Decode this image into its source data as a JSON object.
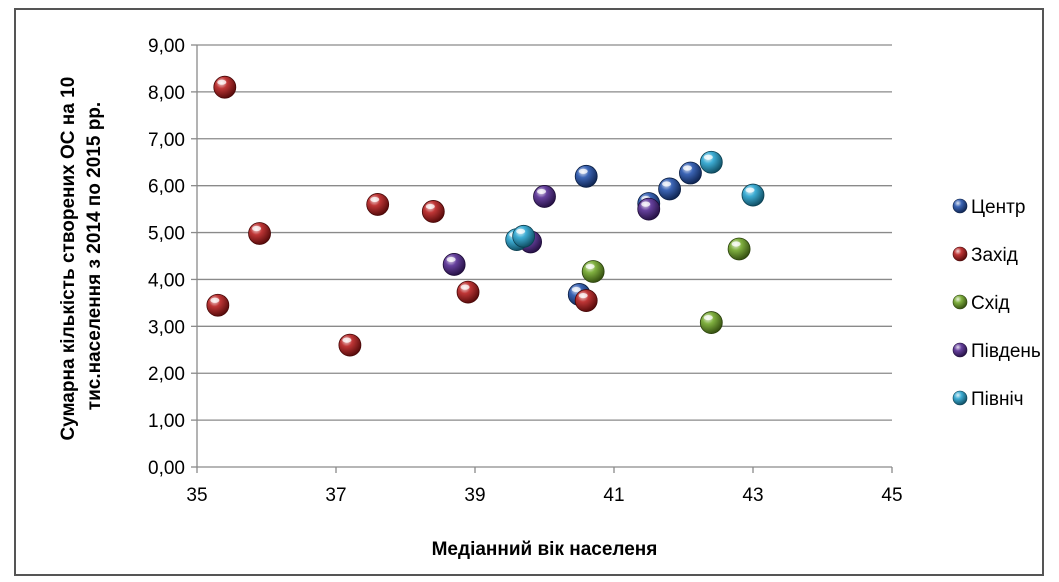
{
  "chart_data": {
    "type": "scatter",
    "title": "",
    "xlabel": "Медіанний вік населеня",
    "ylabel_lines": [
      "Сумарна кількість створених ОС на 10",
      "тис.населення з 2014 по 2015 рр."
    ],
    "xlim": [
      35,
      45
    ],
    "ylim": [
      0,
      9
    ],
    "x_ticks": [
      "35",
      "37",
      "39",
      "41",
      "43",
      "45"
    ],
    "y_ticks": [
      "0,00",
      "1,00",
      "2,00",
      "3,00",
      "4,00",
      "5,00",
      "6,00",
      "7,00",
      "8,00",
      "9,00"
    ],
    "grid": "horizontal",
    "legend_position": "right",
    "series": [
      {
        "name": "Центр",
        "color": "#1a4aa8",
        "points": [
          [
            40.6,
            6.2
          ],
          [
            41.5,
            5.62
          ],
          [
            41.8,
            5.93
          ],
          [
            42.1,
            6.27
          ],
          [
            40.5,
            3.68
          ]
        ]
      },
      {
        "name": "Захід",
        "color": "#b31212",
        "points": [
          [
            35.4,
            8.1
          ],
          [
            35.9,
            4.98
          ],
          [
            35.3,
            3.45
          ],
          [
            37.2,
            2.6
          ],
          [
            37.6,
            5.6
          ],
          [
            38.4,
            5.45
          ],
          [
            38.9,
            3.73
          ],
          [
            40.6,
            3.55
          ]
        ]
      },
      {
        "name": "Схід",
        "color": "#6aa21e",
        "points": [
          [
            40.7,
            4.17
          ],
          [
            42.4,
            3.08
          ],
          [
            42.8,
            4.65
          ]
        ]
      },
      {
        "name": "Південь",
        "color": "#4b1f8c",
        "points": [
          [
            38.7,
            4.32
          ],
          [
            39.8,
            4.8
          ],
          [
            40.0,
            5.77
          ],
          [
            41.5,
            5.5
          ]
        ]
      },
      {
        "name": "Північ",
        "color": "#1c9fcc",
        "points": [
          [
            39.6,
            4.85
          ],
          [
            39.7,
            4.92
          ],
          [
            42.4,
            6.5
          ],
          [
            43.0,
            5.8
          ]
        ]
      }
    ]
  }
}
